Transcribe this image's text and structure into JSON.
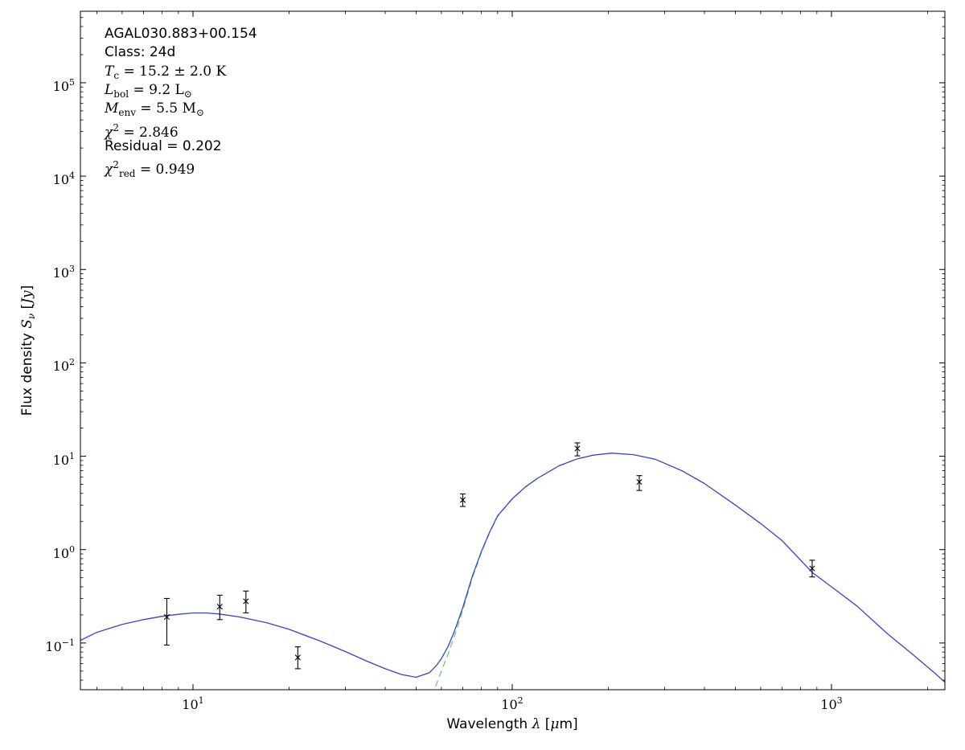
{
  "figure": {
    "background": "#ffffff",
    "frame_color": "#000000"
  },
  "chart_data": {
    "type": "line",
    "title": "",
    "xscale": "log",
    "yscale": "log",
    "xlim": [
      4.44,
      2266
    ],
    "ylim": [
      0.0316,
      583000
    ],
    "grid": false,
    "legend": "none",
    "xlabel_text": "Wavelength λ [μm]",
    "ylabel_text": "Flux density Sν [Jy]",
    "xlabel_segments": [
      {
        "t": "Wavelength ",
        "s": "sans"
      },
      {
        "t": "λ",
        "s": "it"
      },
      {
        "t": " [",
        "s": "sans"
      },
      {
        "t": "μ",
        "s": "it"
      },
      {
        "t": "m]",
        "s": "sans"
      }
    ],
    "ylabel_segments": [
      {
        "t": "Flux density ",
        "s": "sans"
      },
      {
        "t": "S",
        "s": "it"
      },
      {
        "t": "ν",
        "s": "subit"
      },
      {
        "t": " [",
        "s": "sans"
      },
      {
        "t": "Jy",
        "s": "it"
      },
      {
        "t": "]",
        "s": "sans"
      }
    ],
    "x_ticks": [
      {
        "value": 10,
        "label_base": "10",
        "label_exp": "1"
      },
      {
        "value": 100,
        "label_base": "10",
        "label_exp": "2"
      },
      {
        "value": 1000,
        "label_base": "10",
        "label_exp": "3"
      }
    ],
    "y_ticks": [
      {
        "value": 100000,
        "label_base": "10",
        "label_exp": "5"
      },
      {
        "value": 10000,
        "label_base": "10",
        "label_exp": "4"
      },
      {
        "value": 1000,
        "label_base": "10",
        "label_exp": "3"
      },
      {
        "value": 100,
        "label_base": "10",
        "label_exp": "2"
      },
      {
        "value": 10,
        "label_base": "10",
        "label_exp": "1"
      },
      {
        "value": 1,
        "label_base": "10",
        "label_exp": "0"
      },
      {
        "value": 0.1,
        "label_base": "10",
        "label_exp": "−1"
      }
    ],
    "series": [
      {
        "name": "cold-component-greybody",
        "color": "#66cf66",
        "line_style": "dashed",
        "x": [
          56,
          57.5,
          59,
          61,
          63,
          66,
          70,
          75,
          80,
          85,
          90,
          100,
          110,
          120,
          140,
          160,
          180,
          205
        ],
        "y": [
          0.027,
          0.034,
          0.043,
          0.058,
          0.077,
          0.12,
          0.225,
          0.5,
          0.93,
          1.53,
          2.28,
          3.48,
          4.68,
          5.78,
          7.88,
          9.38,
          10.29,
          10.79
        ]
      },
      {
        "name": "model-fit-total",
        "color": "#3345cc",
        "line_style": "solid",
        "x": [
          4.4,
          5,
          6,
          7,
          8,
          9,
          10,
          11,
          12,
          14,
          17,
          20,
          25,
          30,
          35,
          40,
          45,
          50,
          55,
          58,
          60,
          63,
          66,
          70,
          75,
          80,
          85,
          90,
          100,
          110,
          120,
          140,
          160,
          180,
          205,
          240,
          280,
          340,
          400,
          500,
          600,
          700,
          870,
          1000,
          1200,
          1500,
          1800,
          2100,
          2400
        ],
        "y": [
          0.105,
          0.13,
          0.158,
          0.178,
          0.193,
          0.203,
          0.21,
          0.21,
          0.205,
          0.19,
          0.165,
          0.14,
          0.105,
          0.081,
          0.064,
          0.053,
          0.046,
          0.043,
          0.048,
          0.058,
          0.068,
          0.092,
          0.135,
          0.24,
          0.52,
          0.95,
          1.55,
          2.3,
          3.5,
          4.7,
          5.8,
          7.9,
          9.4,
          10.3,
          10.8,
          10.4,
          9.3,
          7.0,
          5.1,
          3.0,
          1.9,
          1.25,
          0.57,
          0.4,
          0.25,
          0.125,
          0.075,
          0.048,
          0.032
        ]
      }
    ],
    "data_points": {
      "marker": "x",
      "color": "#000000",
      "points": [
        {
          "wavelength_um": 8.28,
          "flux_jy": 0.19,
          "err_plus": 0.11,
          "err_minus": 0.095
        },
        {
          "wavelength_um": 12.13,
          "flux_jy": 0.245,
          "err_plus": 0.08,
          "err_minus": 0.067
        },
        {
          "wavelength_um": 14.65,
          "flux_jy": 0.28,
          "err_plus": 0.08,
          "err_minus": 0.07
        },
        {
          "wavelength_um": 21.3,
          "flux_jy": 0.07,
          "err_plus": 0.021,
          "err_minus": 0.017
        },
        {
          "wavelength_um": 70,
          "flux_jy": 3.4,
          "err_plus": 0.55,
          "err_minus": 0.5
        },
        {
          "wavelength_um": 160,
          "flux_jy": 12.1,
          "err_plus": 1.8,
          "err_minus": 2.0
        },
        {
          "wavelength_um": 250,
          "flux_jy": 5.3,
          "err_plus": 0.9,
          "err_minus": 1.0
        },
        {
          "wavelength_um": 870,
          "flux_jy": 0.63,
          "err_plus": 0.14,
          "err_minus": 0.12
        }
      ]
    },
    "annotations": {
      "lines": [
        {
          "name": "source-name",
          "text": "AGAL030.883+00.154",
          "segments": [
            {
              "t": "AGAL030.883+00.154",
              "s": "sans"
            }
          ]
        },
        {
          "name": "class-label",
          "text": "Class: 24d",
          "segments": [
            {
              "t": "Class: 24d",
              "s": "sans"
            }
          ]
        },
        {
          "name": "temperature",
          "text": "Tc = 15.2 ± 2.0 K",
          "segments": [
            {
              "t": "T",
              "s": "it"
            },
            {
              "t": "c",
              "s": "sub"
            },
            {
              "t": " = 15.2 ± 2.0 K",
              "s": "rm"
            }
          ]
        },
        {
          "name": "bolometric-luminosity",
          "text": "Lbol = 9.2 L⊙",
          "segments": [
            {
              "t": "L",
              "s": "it"
            },
            {
              "t": "bol",
              "s": "sub"
            },
            {
              "t": " = 9.2 L",
              "s": "rm"
            },
            {
              "t": "⊙",
              "s": "sub"
            }
          ]
        },
        {
          "name": "envelope-mass",
          "text": "Menv = 5.5 M⊙",
          "segments": [
            {
              "t": "M",
              "s": "it"
            },
            {
              "t": "env",
              "s": "sub"
            },
            {
              "t": " = 5.5 M",
              "s": "rm"
            },
            {
              "t": "⊙",
              "s": "sub"
            }
          ]
        },
        {
          "name": "chi-squared",
          "text": "χ² = 2.846",
          "segments": [
            {
              "t": "χ",
              "s": "it"
            },
            {
              "t": "2",
              "s": "sup"
            },
            {
              "t": " = 2.846",
              "s": "rm"
            }
          ]
        },
        {
          "name": "residual",
          "text": "Residual = 0.202",
          "segments": [
            {
              "t": "Residual = 0.202",
              "s": "sans"
            }
          ]
        },
        {
          "name": "reduced-chi-squared",
          "text": "χ²red = 0.949",
          "segments": [
            {
              "t": "χ",
              "s": "it"
            },
            {
              "t": "2",
              "s": "sup"
            },
            {
              "t": "red",
              "s": "sub"
            },
            {
              "t": " = 0.949",
              "s": "rm"
            }
          ]
        }
      ]
    }
  }
}
